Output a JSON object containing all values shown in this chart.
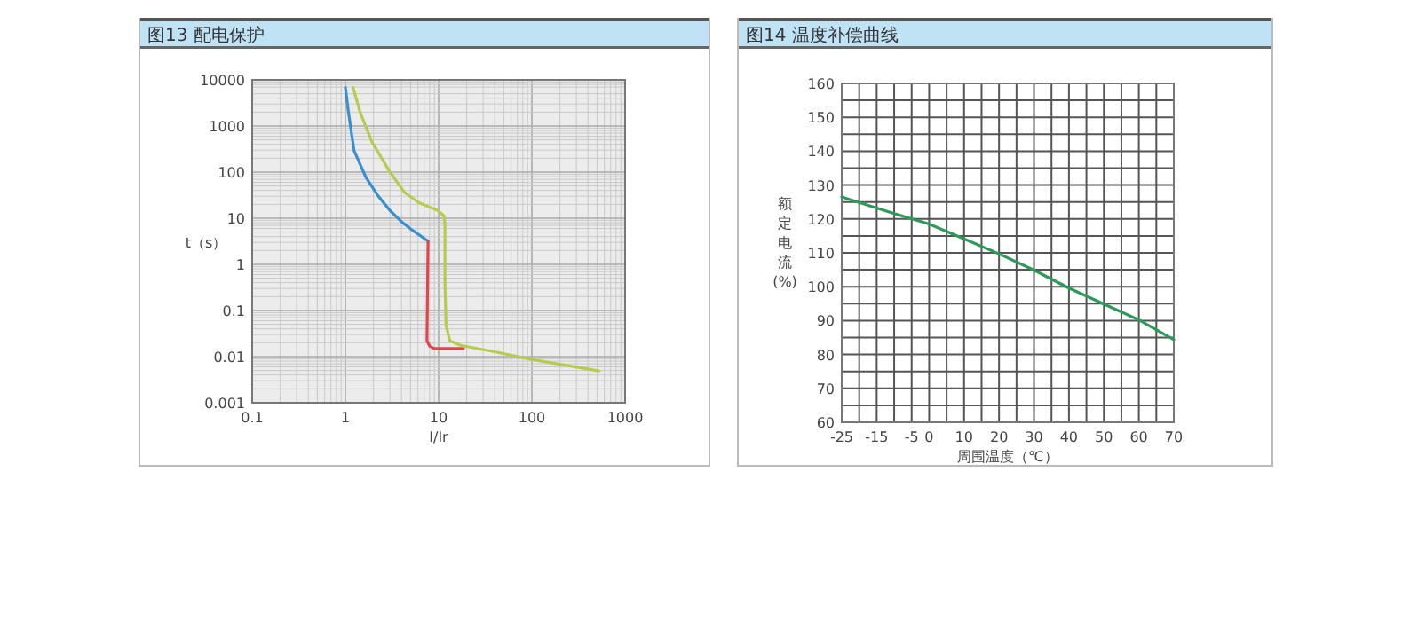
{
  "chart_data": [
    {
      "type": "line",
      "title": "图13 配电保护",
      "xlabel": "I/Ir",
      "ylabel": "t（s）",
      "log": "xy",
      "grid": true,
      "marker": "none",
      "line_style": "solid",
      "xlim": [
        0.1,
        1000
      ],
      "xticks": [
        0.1,
        1,
        10,
        100,
        1000
      ],
      "ylim": [
        0.001,
        10000
      ],
      "yticks": [
        0.001,
        0.01,
        0.1,
        1,
        10,
        100,
        1000,
        10000
      ],
      "series": [
        {
          "color": "#3a8fd0",
          "x": [
            1.0,
            1.08,
            1.24,
            1.66,
            2.23,
            2.98,
            4.0,
            5.3,
            7.7
          ],
          "values": [
            6800,
            1970,
            290,
            77,
            31,
            15,
            8.4,
            5.4,
            3.2
          ]
        },
        {
          "color": "#e0474c",
          "x": [
            7.7,
            7.5,
            8.0,
            8.9,
            18.5
          ],
          "values": [
            3.2,
            0.022,
            0.017,
            0.015,
            0.015
          ]
        },
        {
          "color": "#b5cc4f",
          "x": [
            1.21,
            1.44,
            1.93,
            2.98,
            4.3,
            6.2,
            9.6,
            11.4,
            11.7,
            11.7,
            12,
            13.2,
            17.1,
            41,
            98.5,
            526
          ],
          "values": [
            6800,
            1970,
            450,
            103,
            36.6,
            21.5,
            15,
            11.3,
            7.2,
            0.38,
            0.048,
            0.022,
            0.0176,
            0.0126,
            0.0087,
            0.0049
          ]
        }
      ]
    },
    {
      "type": "line",
      "title": "图14 温度补偿曲线",
      "xlabel": "周围温度（℃）",
      "ylabel": "额定电流(%)",
      "grid": true,
      "marker": "none",
      "line_style": "solid",
      "xlim": [
        -25,
        70
      ],
      "xticks": [
        -25,
        {
          "value": -20,
          "label": null
        },
        -15,
        {
          "value": -10,
          "label": null
        },
        -5,
        0,
        {
          "value": 5,
          "label": null
        },
        10,
        {
          "value": 15,
          "label": null
        },
        20,
        {
          "value": 25,
          "label": null
        },
        30,
        {
          "value": 35,
          "label": null
        },
        40,
        {
          "value": 45,
          "label": null
        },
        50,
        {
          "value": 55,
          "label": null
        },
        60,
        {
          "value": 65,
          "label": null
        },
        70
      ],
      "ylim": [
        60,
        160
      ],
      "yticks": [
        60,
        {
          "value": 65,
          "label": null
        },
        70,
        {
          "value": 75,
          "label": null
        },
        80,
        {
          "value": 85,
          "label": null
        },
        90,
        {
          "value": 95,
          "label": null
        },
        100,
        {
          "value": 105,
          "label": null
        },
        110,
        {
          "value": 115,
          "label": null
        },
        120,
        {
          "value": 125,
          "label": null
        },
        130,
        {
          "value": 135,
          "label": null
        },
        140,
        {
          "value": 145,
          "label": null
        },
        150,
        {
          "value": 155,
          "label": null
        },
        160
      ],
      "series": [
        {
          "color": "#2e9a5a",
          "x": [
            -25,
            -10,
            0,
            10,
            20,
            30,
            40,
            50,
            60,
            70
          ],
          "values": [
            126.5,
            121.6,
            118.5,
            114.1,
            109.7,
            104.9,
            99.6,
            94.9,
            90.2,
            84.4
          ]
        }
      ]
    }
  ]
}
